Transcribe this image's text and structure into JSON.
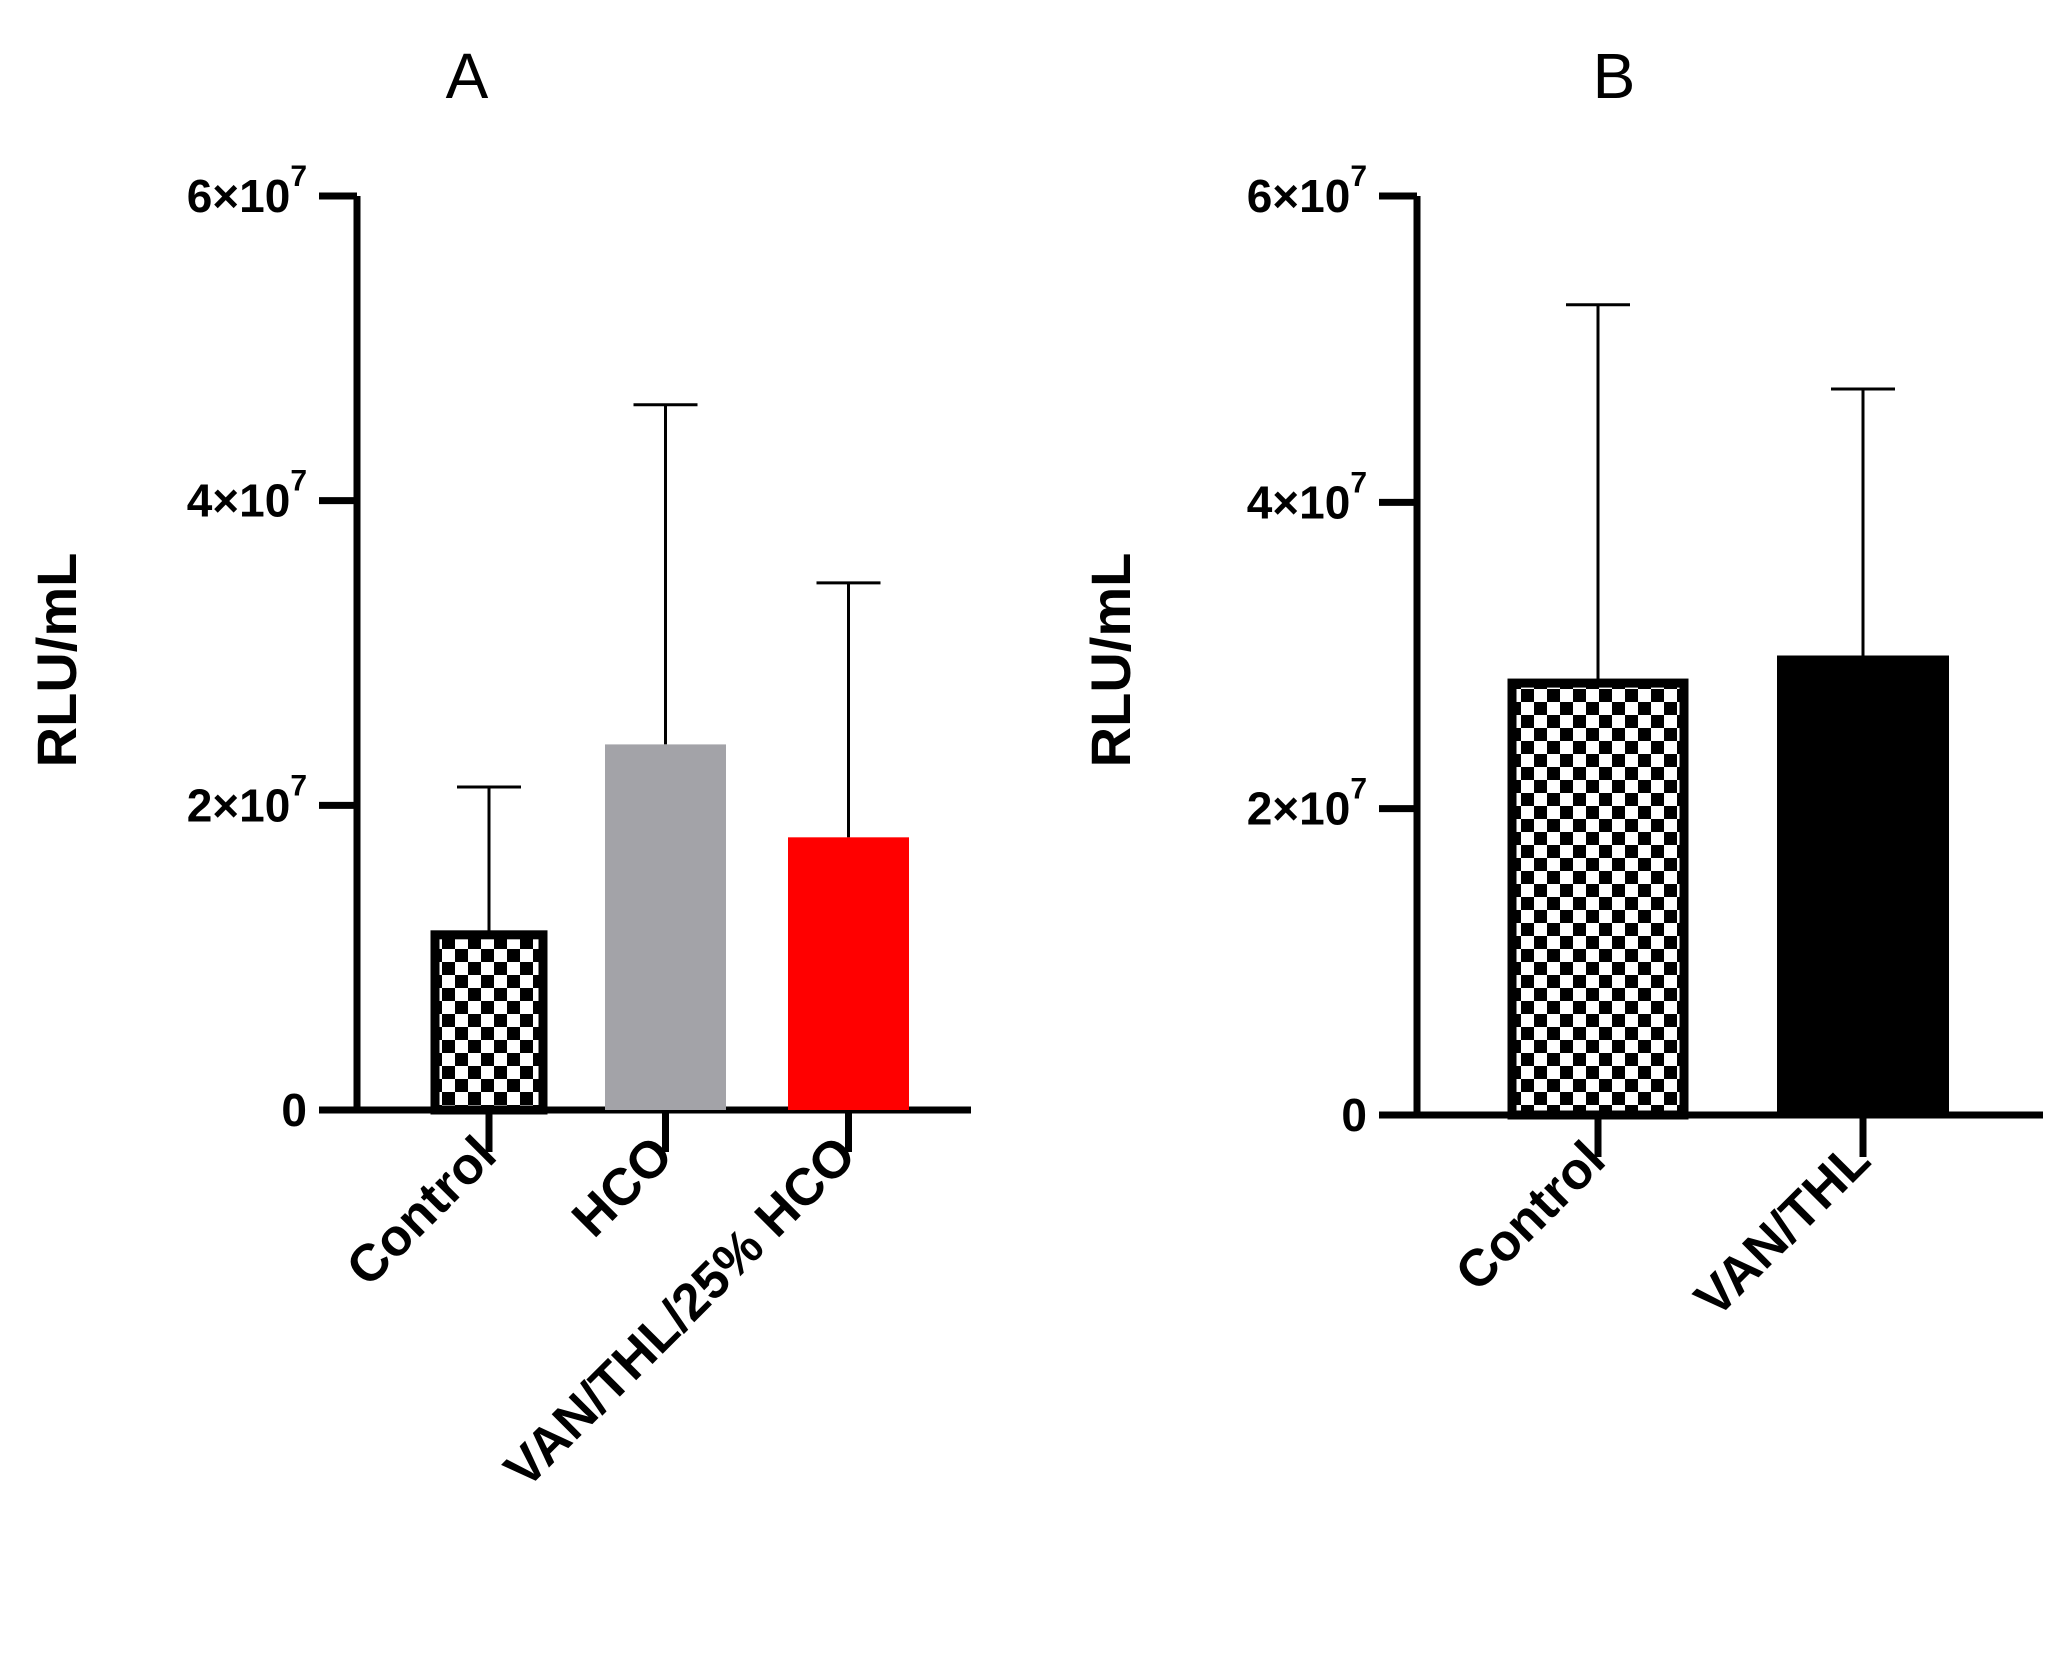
{
  "chart_data": [
    {
      "type": "bar",
      "title": "A",
      "xlabel": "",
      "ylabel": "RLU/mL",
      "ylim": [
        0,
        60000000
      ],
      "y_ticks": [
        {
          "value": 0,
          "base": "0",
          "exp": ""
        },
        {
          "value": 20000000,
          "base": "2×10",
          "exp": "7"
        },
        {
          "value": 40000000,
          "base": "4×10",
          "exp": "7"
        },
        {
          "value": 60000000,
          "base": "6×10",
          "exp": "7"
        }
      ],
      "categories": [
        "Control",
        "HCO",
        "VAN/THL/25% HCO"
      ],
      "values": [
        11500000,
        24000000,
        17900000
      ],
      "error_upper": [
        21200000,
        46300000,
        34600000
      ],
      "fills": [
        "checker",
        "#a3a3a8",
        "#ff0000"
      ],
      "grid": false
    },
    {
      "type": "bar",
      "title": "B",
      "xlabel": "",
      "ylabel": "RLU/mL",
      "ylim": [
        0,
        60000000
      ],
      "y_ticks": [
        {
          "value": 0,
          "base": "0",
          "exp": ""
        },
        {
          "value": 20000000,
          "base": "2×10",
          "exp": "7"
        },
        {
          "value": 40000000,
          "base": "4×10",
          "exp": "7"
        },
        {
          "value": 60000000,
          "base": "6×10",
          "exp": "7"
        }
      ],
      "categories": [
        "Control",
        "VAN/THL"
      ],
      "values": [
        28200000,
        30000000
      ],
      "error_upper": [
        52900000,
        47400000
      ],
      "fills": [
        "checker",
        "#000000"
      ],
      "grid": false
    }
  ]
}
